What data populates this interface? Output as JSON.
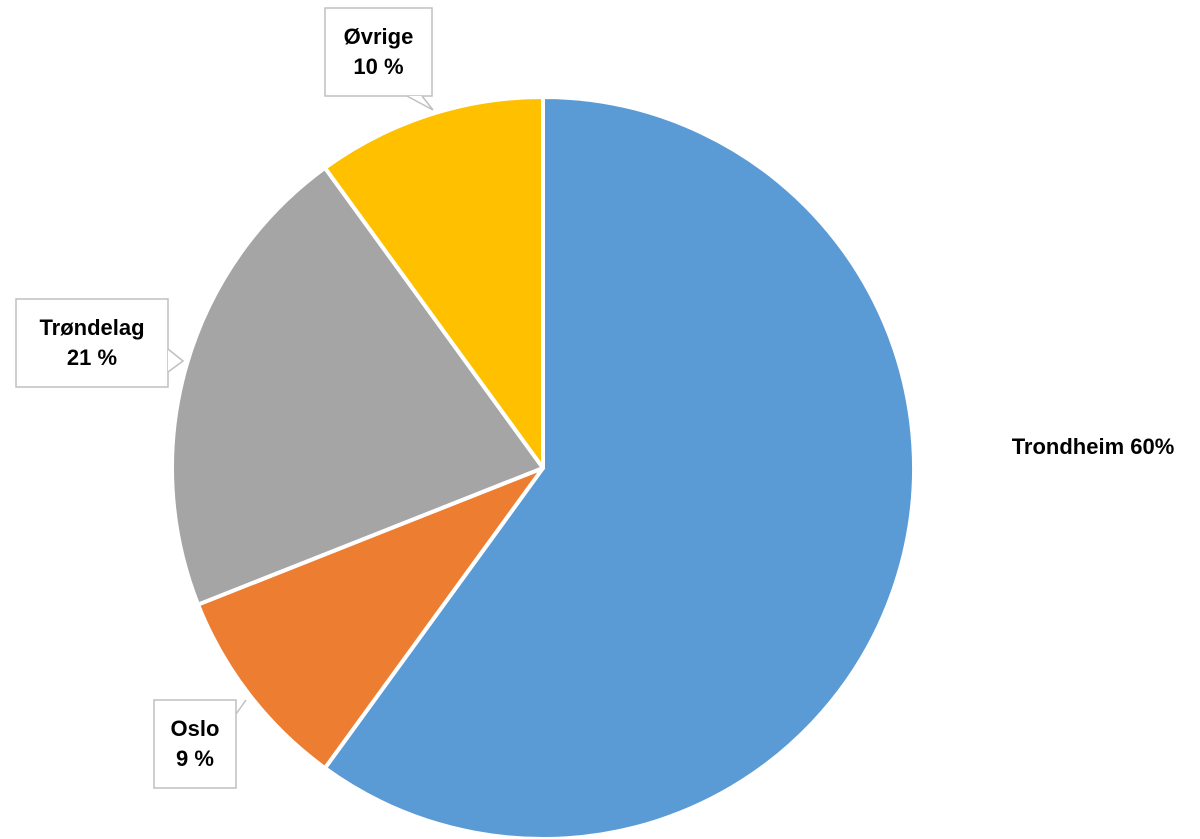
{
  "chart_data": {
    "type": "pie",
    "title": "",
    "slices": [
      {
        "name": "Trondheim",
        "value": 60,
        "label_name": "Trondheim",
        "label_value": "60%",
        "label_style": "inline",
        "color": "#5b9bd5"
      },
      {
        "name": "Oslo",
        "value": 9,
        "label_name": "Oslo",
        "label_value": "9 %",
        "label_style": "callout",
        "color": "#ed7d31"
      },
      {
        "name": "Trøndelag",
        "value": 21,
        "label_name": "Trøndelag",
        "label_value": "21 %",
        "label_style": "callout",
        "color": "#a5a5a5"
      },
      {
        "name": "Øvrige",
        "value": 10,
        "label_name": "Øvrige",
        "label_value": "10 %",
        "label_style": "callout",
        "color": "#ffc000"
      }
    ],
    "start_angle": "12 o'clock",
    "direction": "clockwise",
    "legend": "none",
    "grid": false
  }
}
